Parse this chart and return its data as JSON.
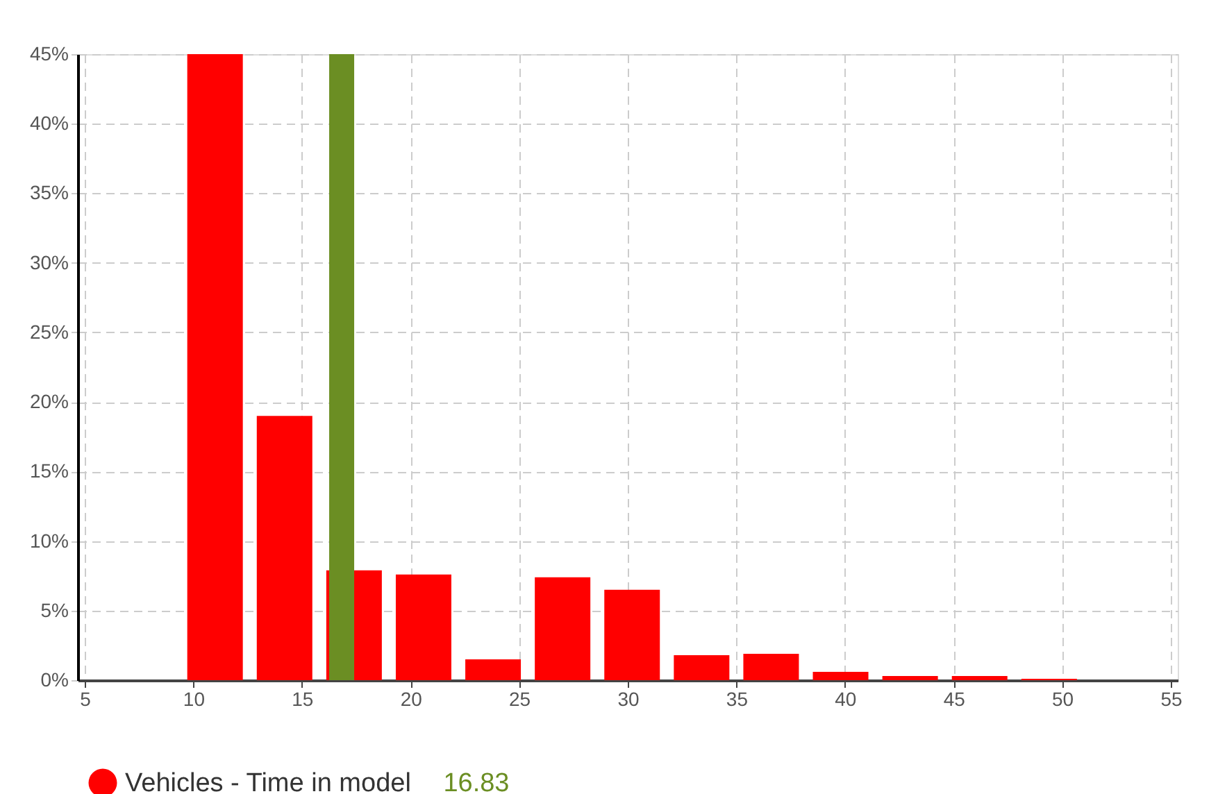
{
  "chart_data": {
    "type": "bar",
    "x": [
      11.0,
      14.2,
      17.4,
      20.6,
      23.8,
      27.0,
      30.2,
      33.4,
      36.6,
      39.8,
      43.0,
      46.2,
      49.4
    ],
    "series": [
      {
        "name": "Vehicles - Time in model",
        "color": "#ff0000",
        "values": [
          45,
          19,
          7.9,
          7.6,
          1.5,
          7.4,
          6.5,
          1.8,
          1.9,
          0.6,
          0.3,
          0.3,
          0.1
        ]
      }
    ],
    "xlim": [
      5,
      55
    ],
    "xticks": [
      5,
      10,
      15,
      20,
      25,
      30,
      35,
      40,
      45,
      50,
      55
    ],
    "ylim": [
      0,
      45
    ],
    "yticks": [
      {
        "value": 0,
        "label": "0%"
      },
      {
        "value": 5,
        "label": "5%"
      },
      {
        "value": 10,
        "label": "10%"
      },
      {
        "value": 15,
        "label": "15%"
      },
      {
        "value": 20,
        "label": "20%"
      },
      {
        "value": 25,
        "label": "25%"
      },
      {
        "value": 30,
        "label": "30%"
      },
      {
        "value": 35,
        "label": "35%"
      },
      {
        "value": 40,
        "label": "40%"
      },
      {
        "value": 45,
        "label": "45%"
      }
    ],
    "ref_lines": [
      {
        "axis": "x",
        "value": 16.83,
        "label": "16.83",
        "color": "#6b8e23"
      }
    ],
    "grid": true,
    "legend": "bottom",
    "marker": "circle"
  }
}
